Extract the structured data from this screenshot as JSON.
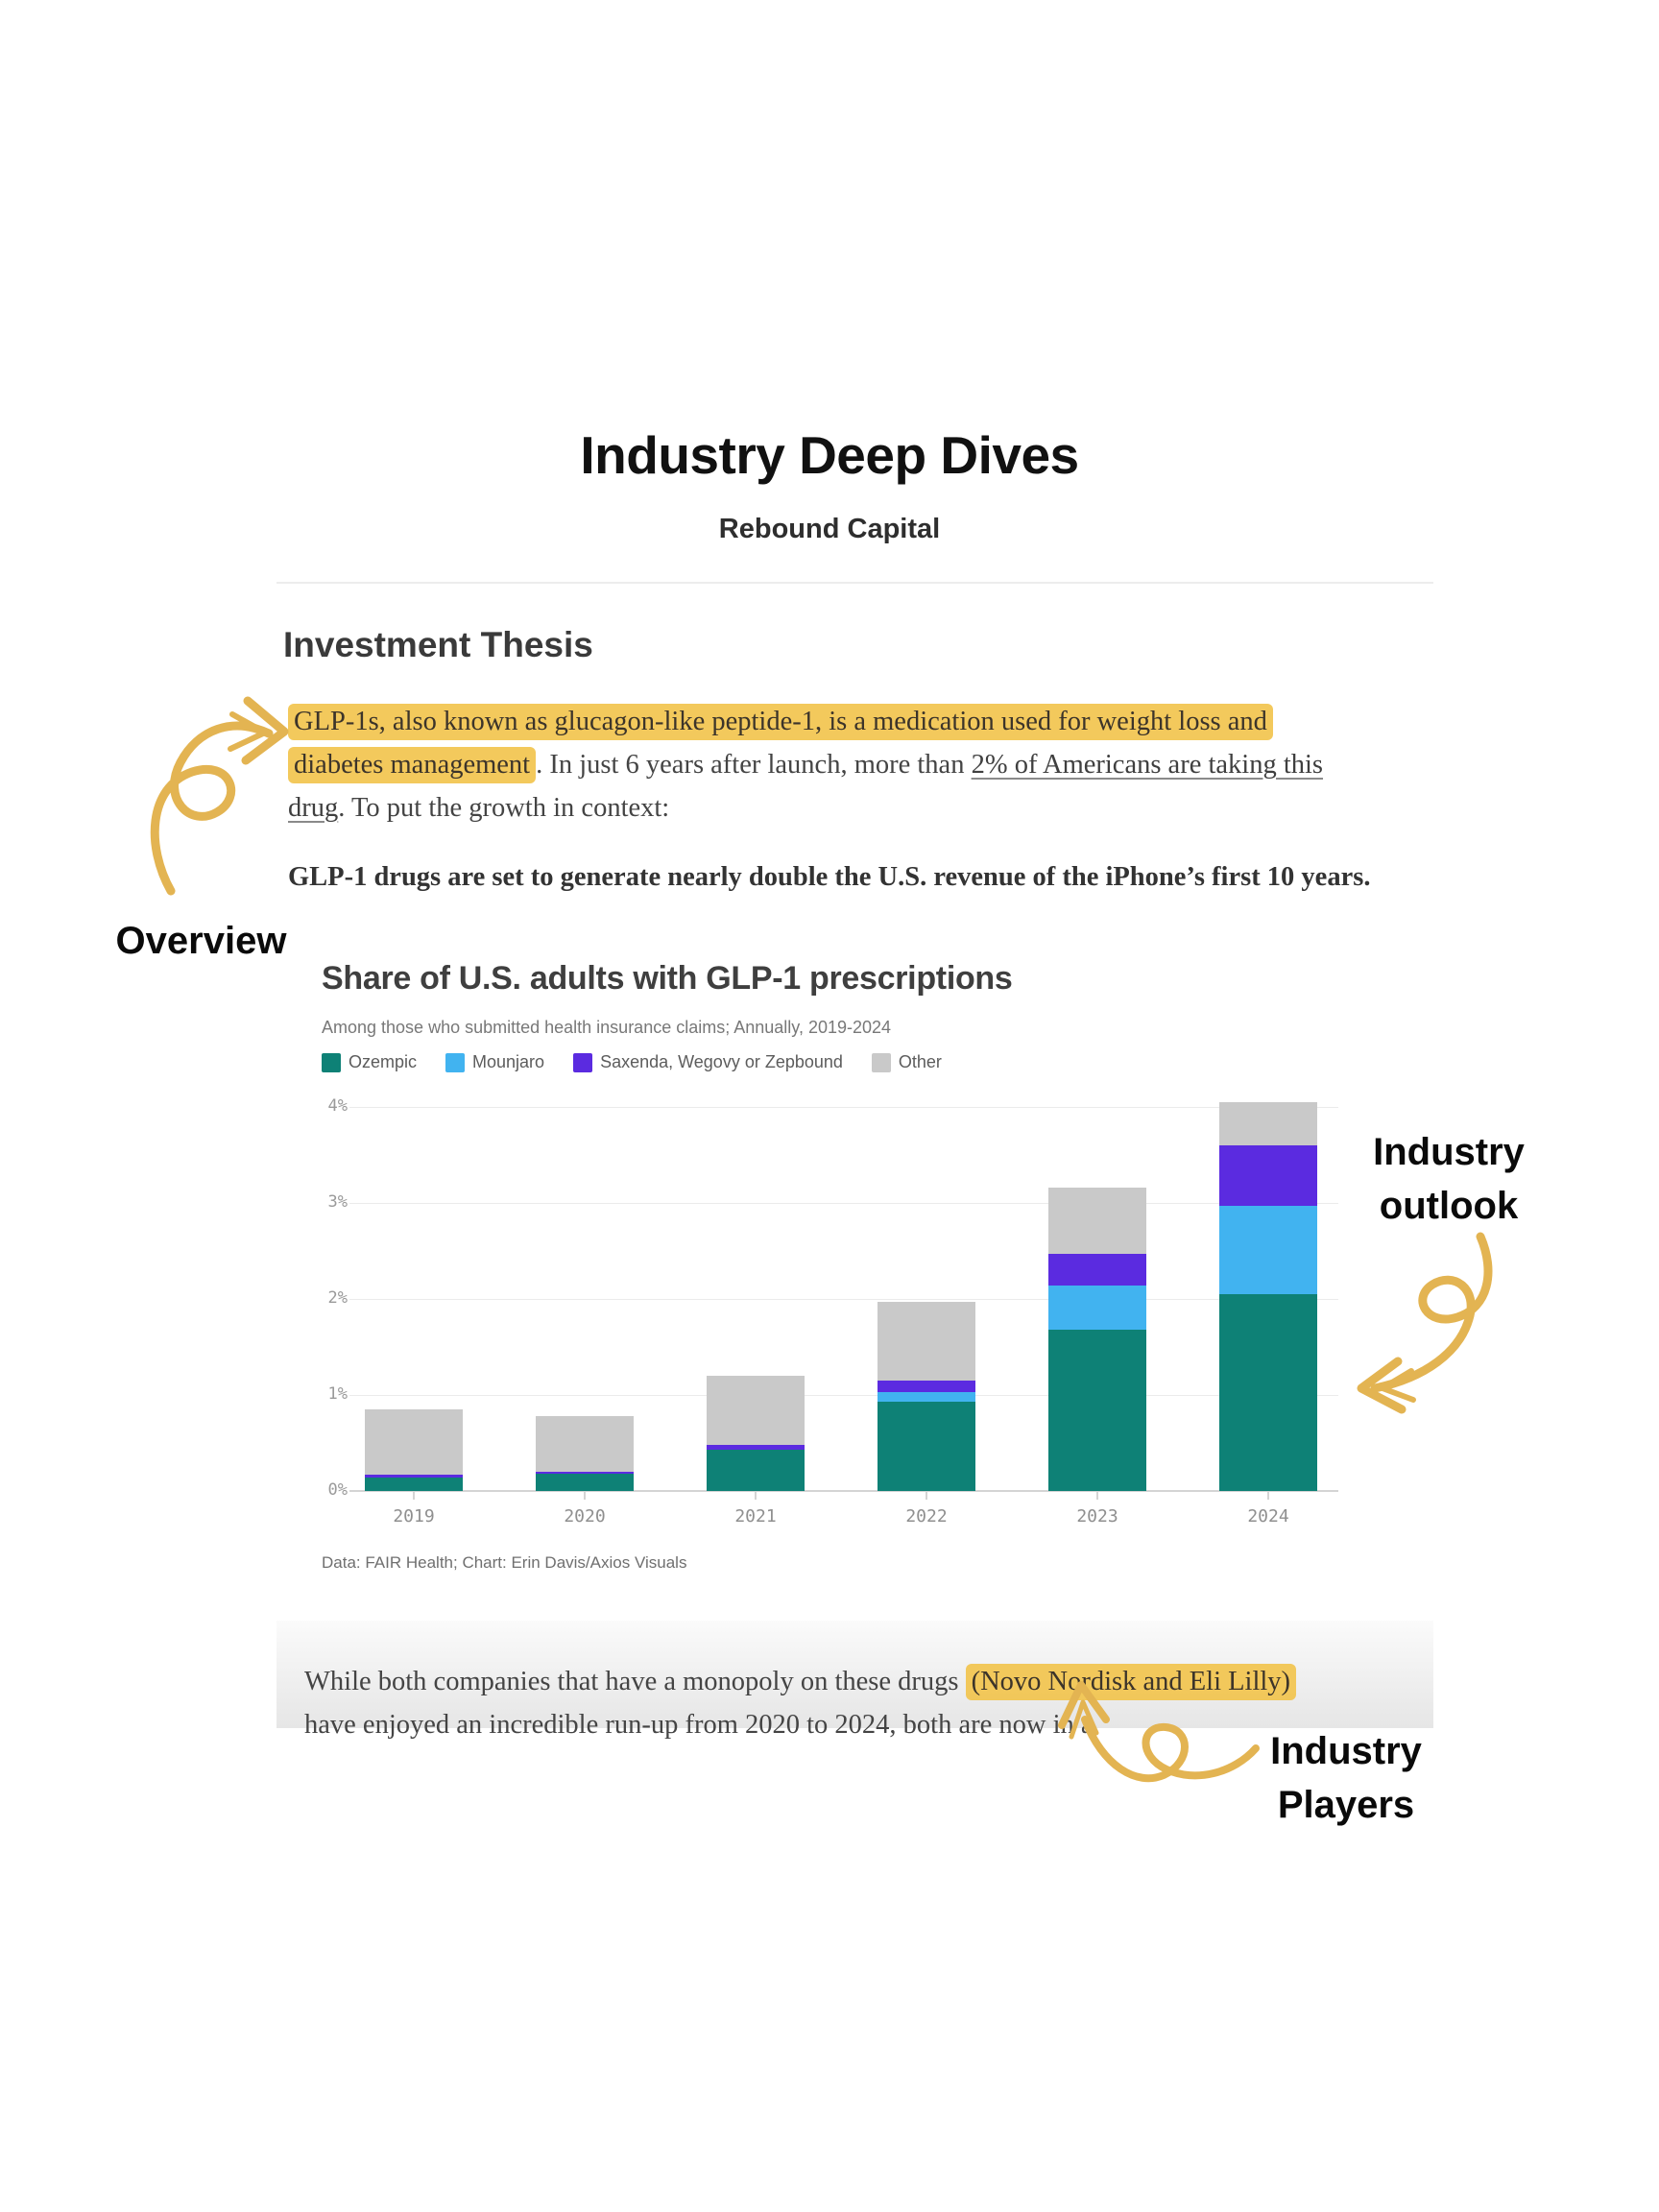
{
  "page": {
    "title": "Industry Deep Dives",
    "subtitle": "Rebound Capital"
  },
  "theme": {
    "annotation_gold": "#e3b452",
    "highlight_yellow": "#f2c34a",
    "link_underline_gray": "#8a8a8a"
  },
  "thesis": {
    "heading": "Investment Thesis",
    "p1": {
      "highlight": "GLP-1s, also known as glucagon-like peptide-1, is a medication used for weight loss and diabetes management",
      "mid": ". In just 6 years after launch, more than ",
      "underline": "2% of Americans are taking this drug",
      "end": ". To put the growth in context:"
    },
    "p2": "GLP-1 drugs are set to generate nearly double the U.S. revenue of the iPhone’s first 10 years."
  },
  "annotations": {
    "overview": "Overview",
    "outlook": "Industry\noutlook",
    "players": "Industry\nPlayers"
  },
  "chart_data": {
    "type": "bar",
    "stacked": true,
    "title": "Share of U.S. adults with GLP-1 prescriptions",
    "subtitle": "Among those who submitted health insurance claims; Annually, 2019-2024",
    "source": "Data: FAIR Health; Chart: Erin Davis/Axios Visuals",
    "categories": [
      "2019",
      "2020",
      "2021",
      "2022",
      "2023",
      "2024"
    ],
    "series": [
      {
        "name": "Ozempic",
        "color": "#0e8176",
        "values": [
          0.14,
          0.18,
          0.43,
          0.93,
          1.68,
          2.05
        ]
      },
      {
        "name": "Mounjaro",
        "color": "#41b3f0",
        "values": [
          0,
          0,
          0,
          0.1,
          0.46,
          0.92
        ]
      },
      {
        "name": "Saxenda, Wegovy or Zepbound",
        "color": "#5b2be0",
        "values": [
          0.03,
          0.02,
          0.05,
          0.12,
          0.33,
          0.63
        ]
      },
      {
        "name": "Other",
        "color": "#c9c9c9",
        "values": [
          0.68,
          0.58,
          0.72,
          0.82,
          0.69,
          0.45
        ]
      }
    ],
    "totals": [
      0.85,
      0.78,
      1.2,
      1.97,
      3.16,
      4.05
    ],
    "xlabel": "",
    "ylabel": "",
    "y_ticks": [
      "0%",
      "1%",
      "2%",
      "3%",
      "4%"
    ],
    "ylim": [
      0,
      4
    ],
    "grid": true,
    "legend_position": "top"
  },
  "players_paragraph": {
    "pre": "While both companies that have a monopoly on these drugs ",
    "highlight": "(Novo Nordisk and Eli Lilly)",
    "post": " have enjoyed an incredible run-up from 2020 to 2024, both are now in a"
  }
}
